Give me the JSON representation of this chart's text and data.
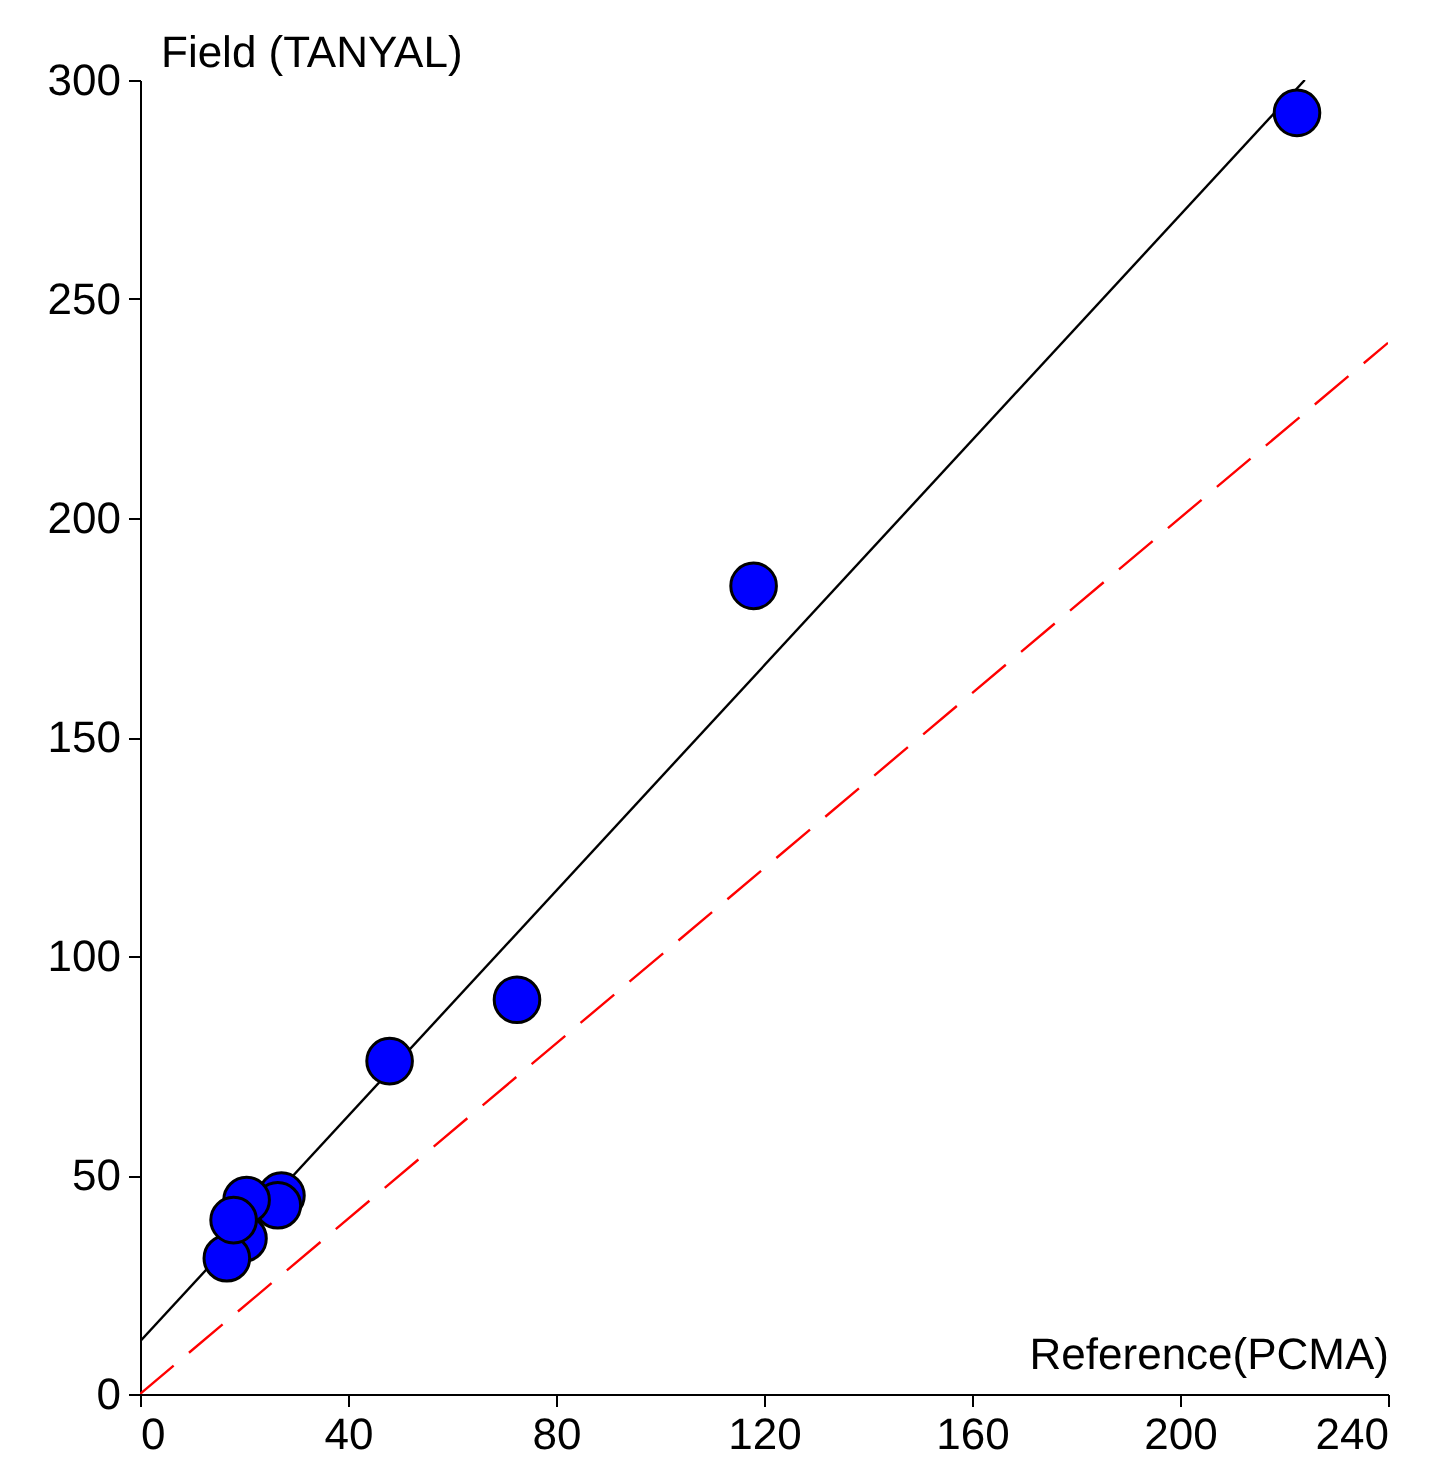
{
  "chart_data": {
    "type": "scatter",
    "xlabel": "Reference(PCMA)",
    "ylabel": "Field (TANYAL)",
    "xlim": [
      0,
      240
    ],
    "xticks": [
      0,
      40,
      80,
      120,
      160,
      200,
      240
    ],
    "ylim": [
      0,
      300
    ],
    "yticks": [
      0,
      50,
      100,
      150,
      200,
      250,
      300
    ],
    "grid": false,
    "series": [
      {
        "type": "line",
        "color": "#000000",
        "line_style": "solid",
        "x": [
          0,
          224
        ],
        "values": [
          12,
          300
        ]
      },
      {
        "type": "line",
        "color": "#ff0000",
        "line_style": "dashed",
        "x": [
          0,
          240
        ],
        "values": [
          0,
          240
        ]
      },
      {
        "color": "#0000ff",
        "marker": "circle",
        "x": [
          222.5,
          118,
          72.5,
          48,
          27.2,
          26.5,
          20.5,
          19.9,
          16.7,
          18
        ],
        "values": [
          292.5,
          184.5,
          90,
          76,
          45.3,
          43.1,
          44.3,
          35.5,
          31,
          39.7
        ]
      }
    ]
  }
}
